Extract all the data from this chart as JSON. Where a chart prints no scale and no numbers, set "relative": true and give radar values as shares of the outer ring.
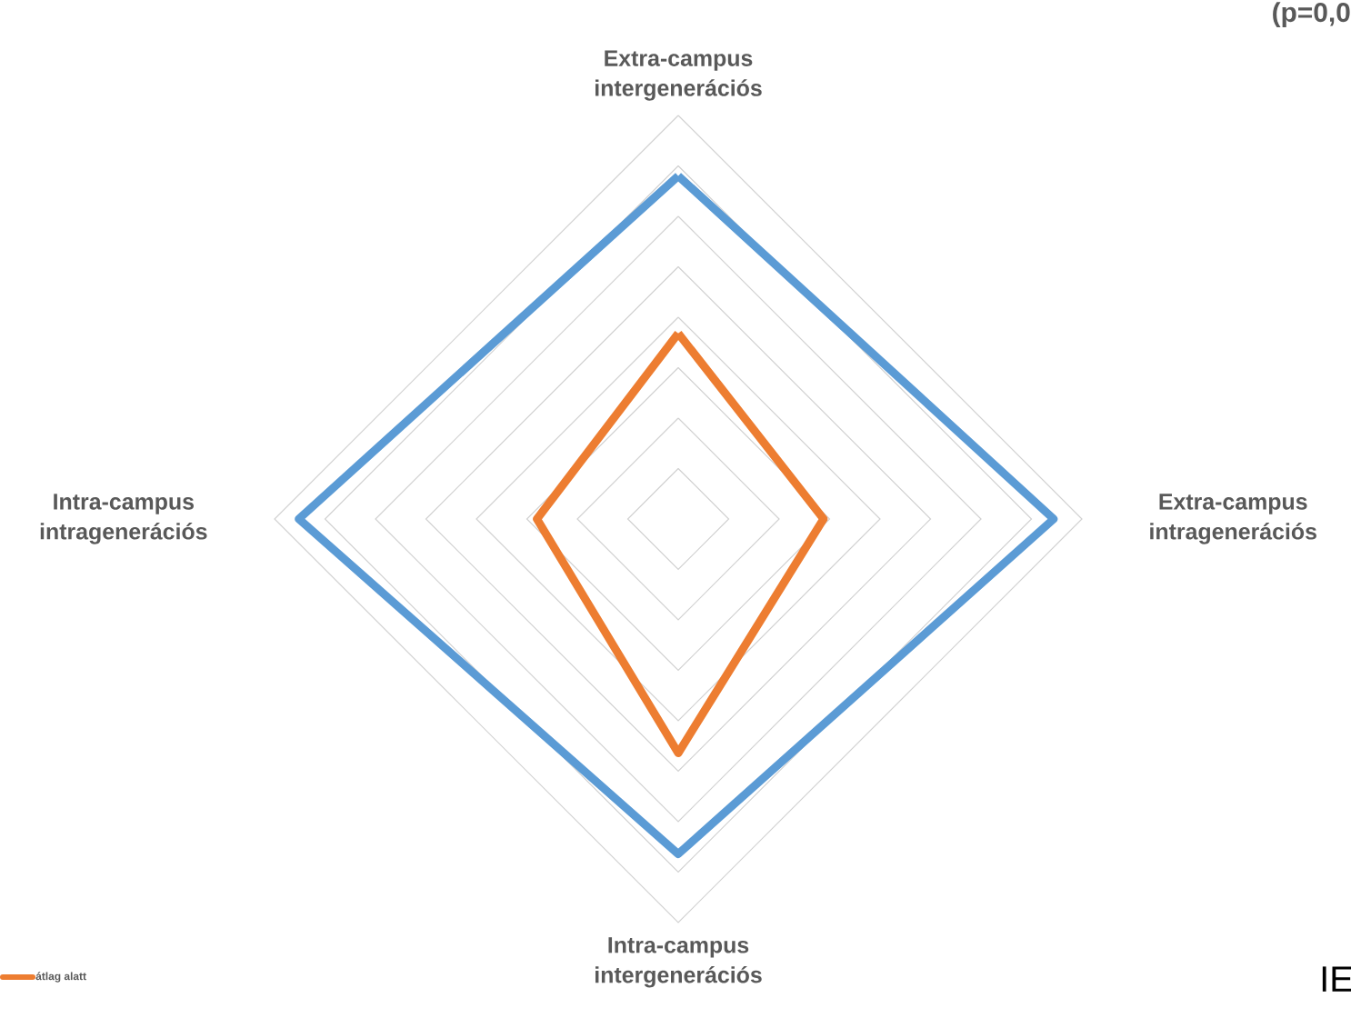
{
  "chart_data": {
    "type": "radar",
    "relative": true,
    "grid": true,
    "legend": "bottom left",
    "categories": [
      "Extra-campus intergenerációs",
      "Extra-campus intragenerációs",
      "Intra-campus intergenerációs",
      "Intra-campus intragenerációs"
    ],
    "series": [
      {
        "color": "#5b9bd5",
        "values": [
          0.85,
          0.93,
          0.83,
          0.94
        ]
      },
      {
        "name": "átlag alatt",
        "color": "#ed7d31",
        "values": [
          0.46,
          0.36,
          0.58,
          0.35
        ]
      }
    ],
    "annotations": [
      "(p=0,0",
      "IE"
    ]
  }
}
